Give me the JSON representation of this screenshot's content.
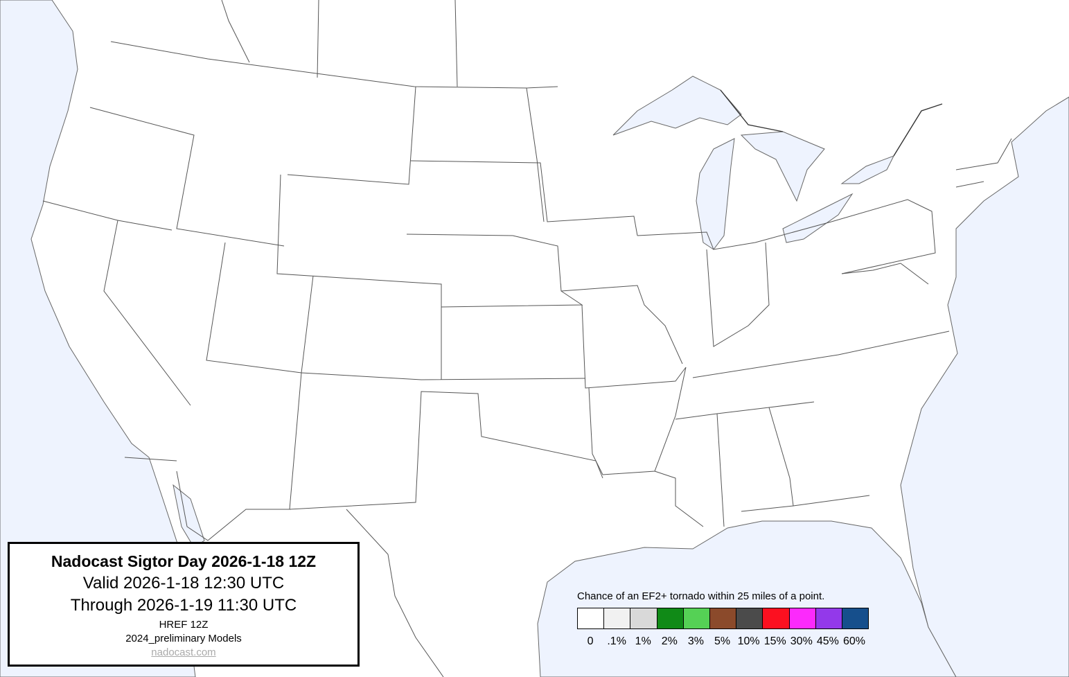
{
  "title_box": {
    "title": "Nadocast Sigtor Day 2026-1-18 12Z",
    "valid": "Valid 2026-1-18 12:30 UTC",
    "through": "Through 2026-1-19 11:30 UTC",
    "model": "HREF 12Z",
    "models_version": "2024_preliminary Models",
    "link": "nadocast.com"
  },
  "legend": {
    "caption": "Chance of an EF2+ tornado within 25 miles of a point.",
    "bins": [
      {
        "label": "0",
        "color": "#ffffff"
      },
      {
        "label": ".1%",
        "color": "#f1f1f1"
      },
      {
        "label": "1%",
        "color": "#d9d9d9"
      },
      {
        "label": "2%",
        "color": "#108a17"
      },
      {
        "label": "3%",
        "color": "#55d155"
      },
      {
        "label": "5%",
        "color": "#8b4a2b"
      },
      {
        "label": "10%",
        "color": "#4b4b4b"
      },
      {
        "label": "15%",
        "color": "#fc1020"
      },
      {
        "label": "30%",
        "color": "#fc2afc"
      },
      {
        "label": "45%",
        "color": "#9339ea"
      },
      {
        "label": "60%",
        "color": "#164f8c"
      }
    ]
  },
  "map": {
    "water_color": "#eef3fe",
    "land_color": "#ffffff",
    "forecast_shading": "none"
  }
}
